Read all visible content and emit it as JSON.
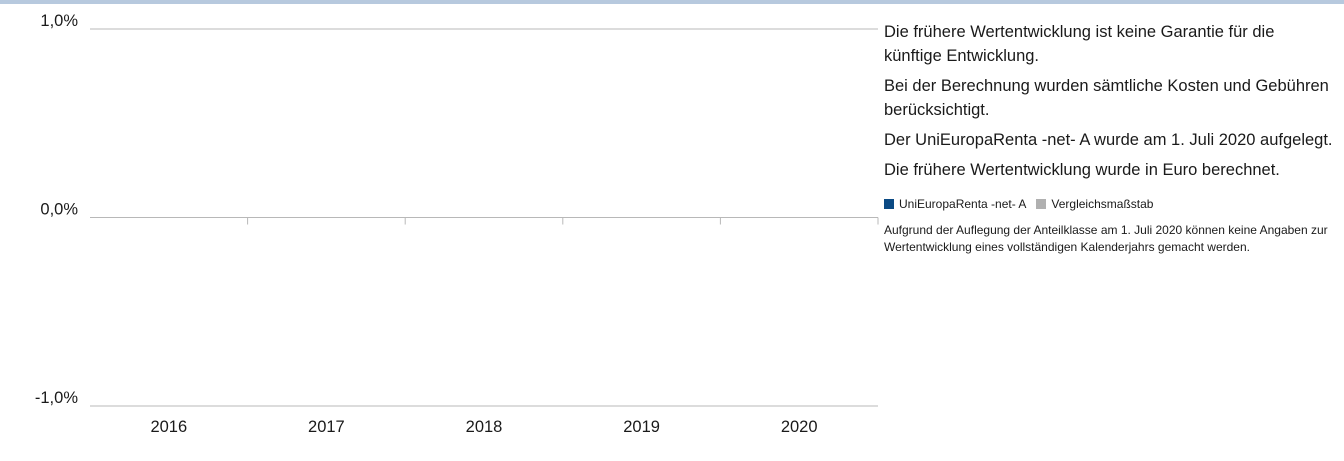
{
  "chart_data": {
    "type": "bar",
    "categories": [
      "2016",
      "2017",
      "2018",
      "2019",
      "2020"
    ],
    "series": [
      {
        "name": "UniEuropaRenta -net- A",
        "values": [
          null,
          null,
          null,
          null,
          null
        ],
        "color": "#0b4a84"
      },
      {
        "name": "Vergleichsmaßstab",
        "values": [
          null,
          null,
          null,
          null,
          null
        ],
        "color": "#b0b0b0"
      }
    ],
    "ylim": [
      -1.0,
      1.0
    ],
    "yticks": [
      {
        "value": 1.0,
        "label": "1,0%"
      },
      {
        "value": 0.0,
        "label": "0,0%"
      },
      {
        "value": -1.0,
        "label": "-1,0%"
      }
    ],
    "title": "",
    "xlabel": "",
    "ylabel": "",
    "grid": false,
    "legend": "right"
  },
  "notes": [
    "Die frühere Wertentwicklung ist keine Garantie für die künftige Entwicklung.",
    "Bei der Berechnung wurden sämtliche Kosten und Gebühren berücksichtigt.",
    "Der UniEuropaRenta -net- A wurde am 1. Juli 2020 aufgelegt.",
    "Die frühere Wertentwicklung wurde in Euro berechnet."
  ],
  "footnote": "Aufgrund der Auflegung der Anteilklasse am 1. Juli 2020 können keine Angaben zur Wertentwicklung eines vollständigen Kalenderjahrs gemacht werden.",
  "colors": {
    "accent_bar": "#b7c9de",
    "axis": "#b8b8b8"
  }
}
